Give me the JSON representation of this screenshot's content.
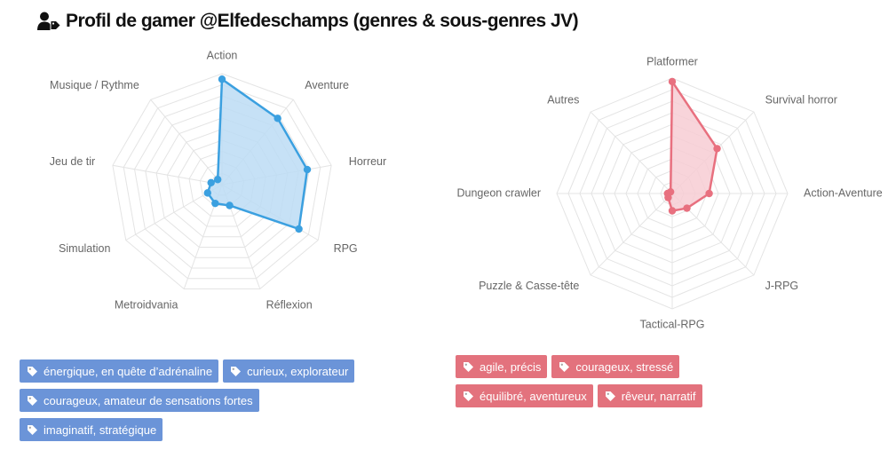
{
  "title": "Profil de gamer @Elfedeschamps (genres & sous-genres JV)",
  "icons": {
    "title": "user-tag-icon",
    "tag": "tag-icon"
  },
  "colors": {
    "left": "#3ba0e0",
    "left_fill": "#bcdcf5",
    "right": "#e8707f",
    "right_fill": "#f7cdd3",
    "tag_left": "#6b94d8",
    "tag_right": "#e3727d"
  },
  "chart_data": [
    {
      "type": "radar",
      "axes": [
        "Action",
        "Aventure",
        "Horreur",
        "RPG",
        "Réflexion",
        "Metroidvania",
        "Simulation",
        "Jeu de tir",
        "Musique / Rythme"
      ],
      "values": [
        0.95,
        0.78,
        0.78,
        0.8,
        0.2,
        0.18,
        0.15,
        0.1,
        0.06
      ],
      "range": [
        0,
        1
      ],
      "grid_levels": 10,
      "grid": true
    },
    {
      "type": "radar",
      "axes": [
        "Platformer",
        "Survival horror",
        "Action-Aventure",
        "J-RPG",
        "Tactical-RPG",
        "Puzzle & Casse-tête",
        "Dungeon crawler",
        "Autres"
      ],
      "values": [
        0.97,
        0.55,
        0.32,
        0.18,
        0.15,
        0.05,
        0.04,
        0.02
      ],
      "range": [
        0,
        1
      ],
      "grid_levels": 10,
      "grid": true
    }
  ],
  "tags_left": [
    [
      "énergique, en quête d’adrénaline",
      "curieux, explorateur"
    ],
    [
      "courageux, amateur de sensations fortes"
    ],
    [
      "imaginatif, stratégique"
    ]
  ],
  "tags_right": [
    [
      "agile, précis",
      "courageux, stressé"
    ],
    [
      "équilibré, aventureux",
      "rêveur, narratif"
    ]
  ]
}
